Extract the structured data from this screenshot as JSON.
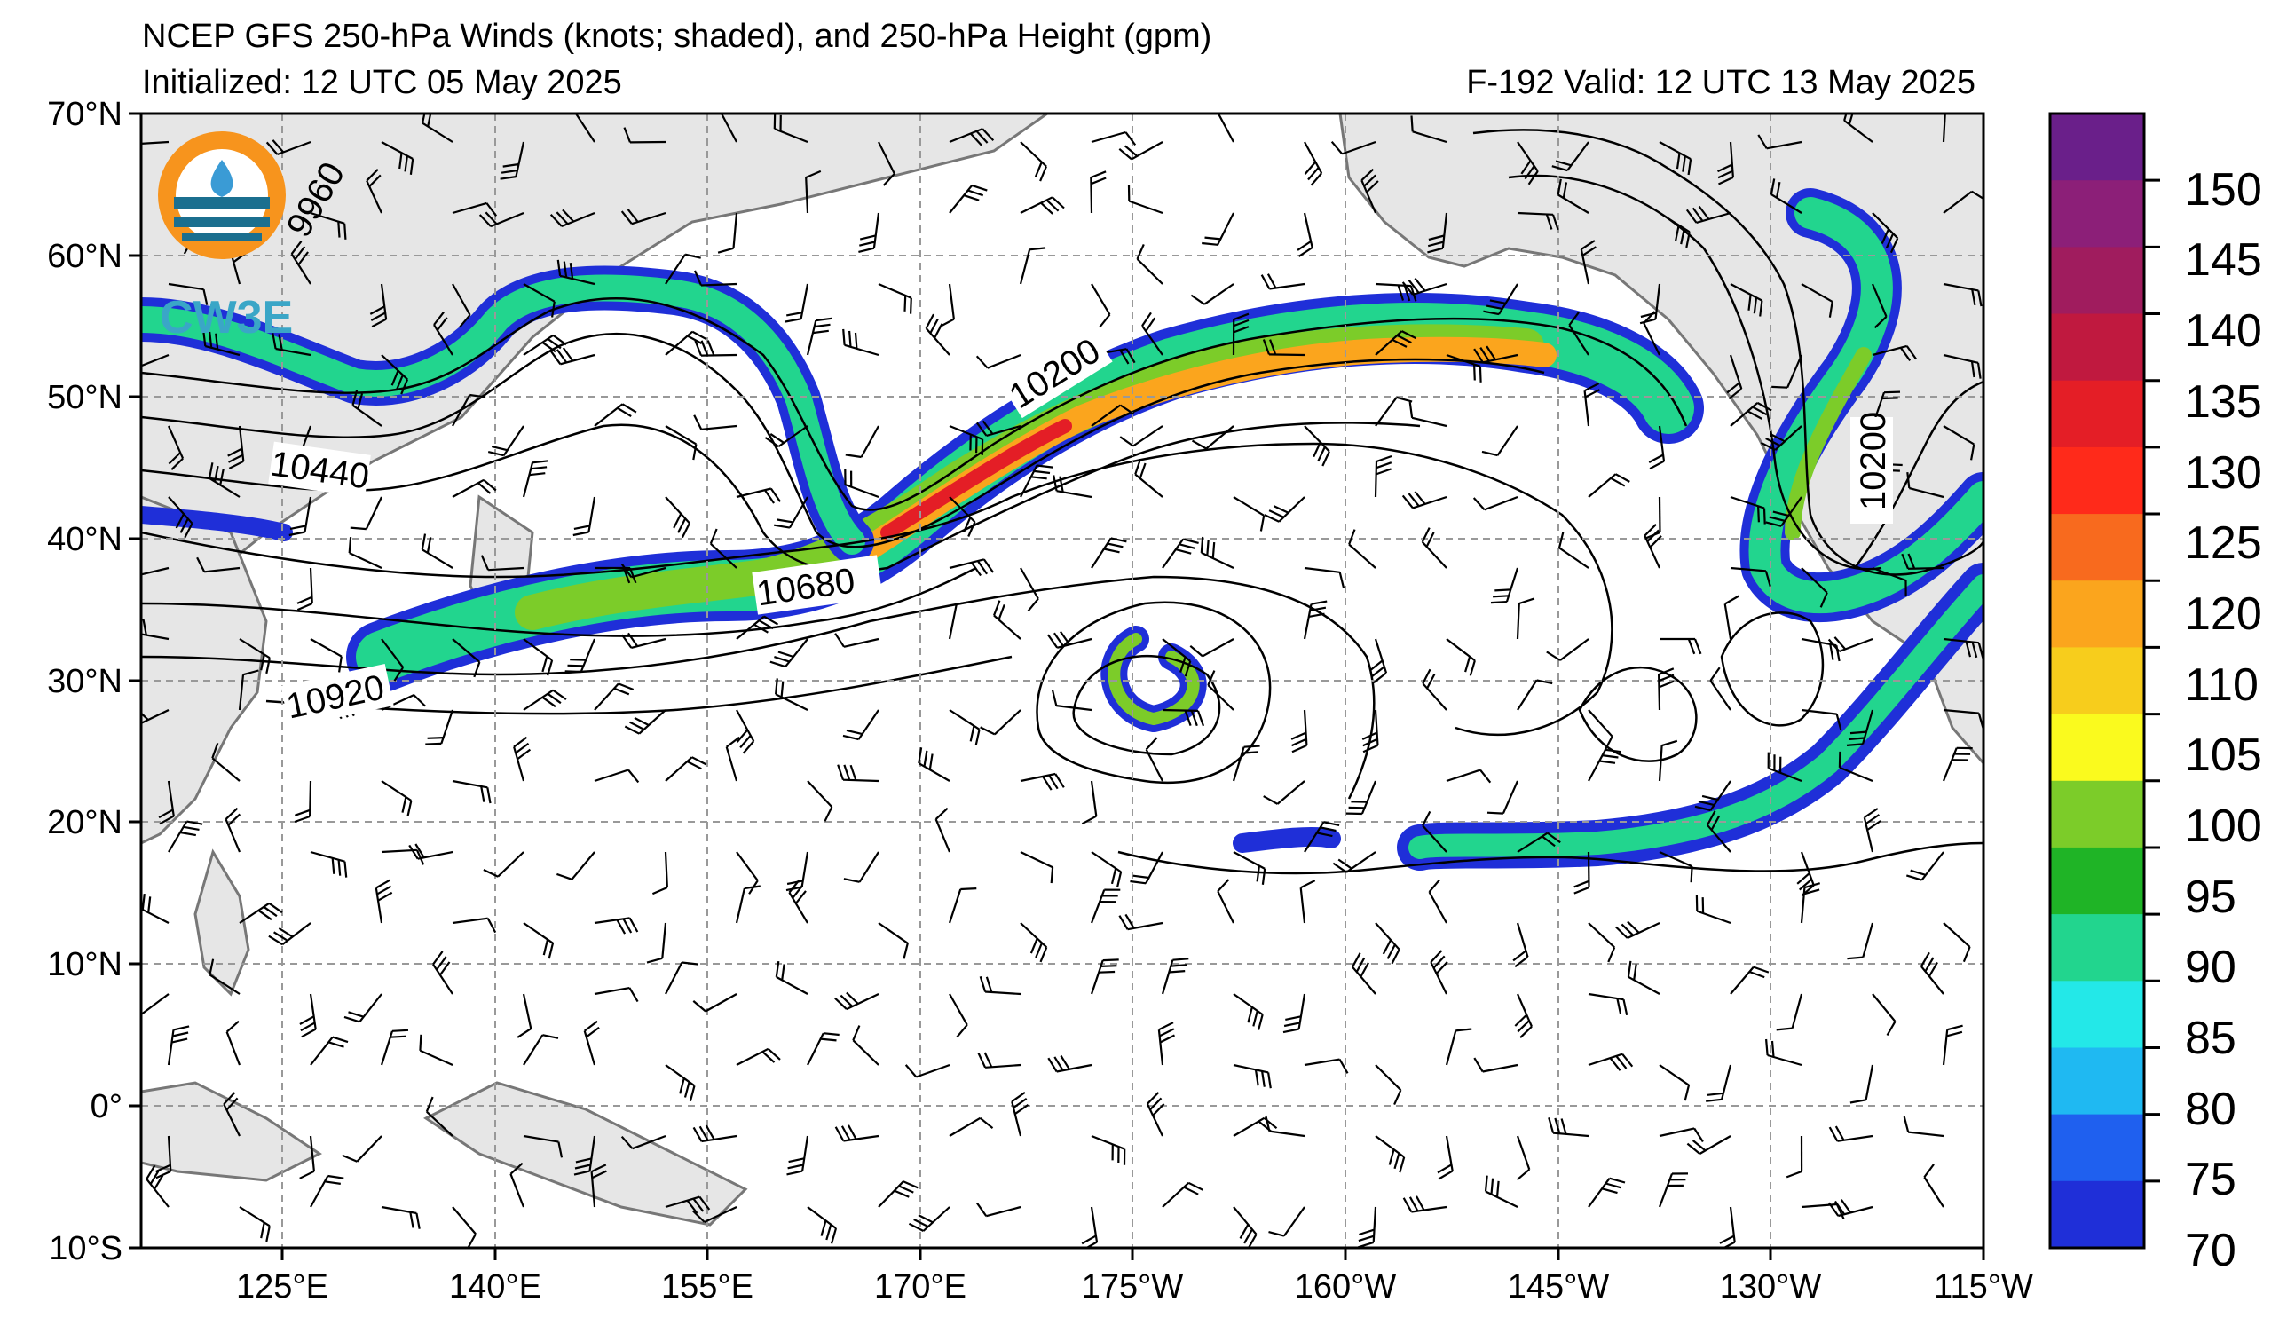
{
  "title": {
    "line1": "NCEP GFS 250-hPa Winds (knots; shaded), and 250-hPa Height (gpm)",
    "line2_left": "Initialized: 12 UTC 05 May 2025",
    "line2_right": "F-192  Valid: 12 UTC 13 May 2025"
  },
  "logo": {
    "text": "CW3E"
  },
  "lat_labels": [
    "70°N",
    "60°N",
    "50°N",
    "40°N",
    "30°N",
    "20°N",
    "10°N",
    "0°",
    "10°S"
  ],
  "lon_labels": [
    "125°E",
    "140°E",
    "155°E",
    "170°E",
    "175°W",
    "160°W",
    "145°W",
    "130°W",
    "115°W"
  ],
  "contour_labels": [
    "10440",
    "10680",
    "10920",
    "10200",
    "10200",
    "9960"
  ],
  "colorbar": {
    "ticks": [
      "150",
      "145",
      "140",
      "135",
      "130",
      "125",
      "120",
      "110",
      "105",
      "100",
      "95",
      "90",
      "85",
      "80",
      "75",
      "70"
    ],
    "colors": [
      "#6a1f8a",
      "#8c1f78",
      "#a01c5e",
      "#c0193f",
      "#e41e26",
      "#ff2a1a",
      "#f86a1e",
      "#fba51d",
      "#f7cd1c",
      "#fafa1e",
      "#7ccc29",
      "#1fb426",
      "#22d58e",
      "#23e8e8",
      "#1fb9f2",
      "#1f60ef",
      "#1f2fd8"
    ]
  },
  "colors": {
    "land": "#e6e6e6",
    "coast": "#777777",
    "grid": "#999999",
    "contour": "#000000"
  }
}
